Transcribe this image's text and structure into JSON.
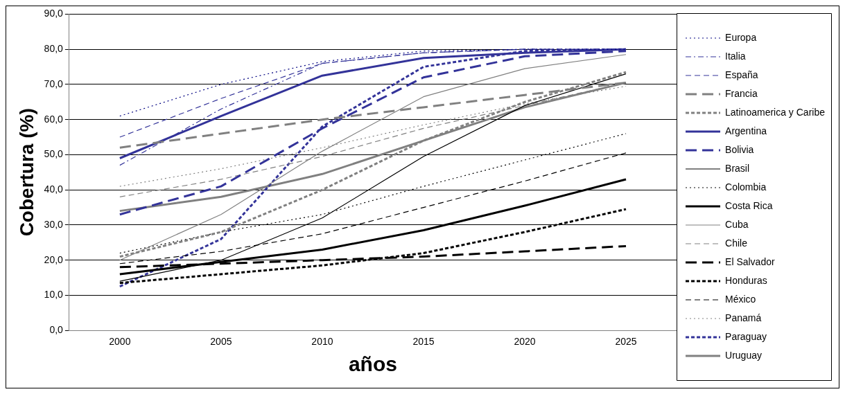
{
  "chart_data": {
    "type": "line",
    "xlabel": "años",
    "ylabel": "Cobertura (%)",
    "categories": [
      "2000",
      "2005",
      "2010",
      "2015",
      "2020",
      "2025"
    ],
    "ylim": [
      0,
      90
    ],
    "yticks": [
      {
        "value": 0,
        "label": "0,0"
      },
      {
        "value": 10,
        "label": "10,0"
      },
      {
        "value": 20,
        "label": "20,0"
      },
      {
        "value": 30,
        "label": "30,0"
      },
      {
        "value": 40,
        "label": "40,0"
      },
      {
        "value": 50,
        "label": "50,0"
      },
      {
        "value": 60,
        "label": "60,0"
      },
      {
        "value": 70,
        "label": "70,0"
      },
      {
        "value": 80,
        "label": "80,0"
      },
      {
        "value": 90,
        "label": "90,0"
      }
    ],
    "grid": "y",
    "legend": "right",
    "marker": "none",
    "series": [
      {
        "name": "Europa",
        "color": "#000080",
        "line_style": "dotted",
        "values": [
          61,
          70,
          76.5,
          79.5,
          80,
          80
        ]
      },
      {
        "name": "Italia",
        "color": "#333399",
        "line_style": "dashdot",
        "values": [
          47,
          63,
          76,
          79,
          80,
          80
        ]
      },
      {
        "name": "España",
        "color": "#333399",
        "line_style": "dashed",
        "values": [
          55,
          66,
          76,
          79,
          80,
          80
        ]
      },
      {
        "name": "Francia",
        "color": "#808080",
        "line_style": "dashed",
        "values": [
          52,
          56,
          60,
          63.5,
          67,
          70.5
        ]
      },
      {
        "name": "Latinoamerica y Caribe",
        "color": "#808080",
        "line_style": "dotted",
        "values": [
          21,
          28,
          40,
          54,
          65,
          73.5
        ]
      },
      {
        "name": "Argentina",
        "color": "#333399",
        "line_style": "solid",
        "values": [
          49,
          61,
          72.5,
          77.5,
          79,
          80
        ]
      },
      {
        "name": "Bolivia",
        "color": "#333399",
        "line_style": "dashed",
        "values": [
          33,
          41,
          57.5,
          72,
          78,
          79.5
        ]
      },
      {
        "name": "Brasil",
        "color": "#000000",
        "line_style": "solid",
        "values": [
          14,
          20,
          32,
          49.5,
          64,
          73
        ]
      },
      {
        "name": "Colombia",
        "color": "#000000",
        "line_style": "dotted",
        "values": [
          22,
          28,
          33,
          41,
          48.5,
          56
        ]
      },
      {
        "name": "Costa Rica",
        "color": "#000000",
        "line_style": "solid",
        "values": [
          16,
          19.5,
          23,
          28.5,
          35.5,
          43
        ]
      },
      {
        "name": "Cuba",
        "color": "#808080",
        "line_style": "solid",
        "values": [
          20,
          33,
          51,
          66.5,
          74.5,
          78.5
        ]
      },
      {
        "name": "Chile",
        "color": "#808080",
        "line_style": "dashed",
        "values": [
          38,
          43,
          49.5,
          57.5,
          64,
          70.5
        ]
      },
      {
        "name": "El Salvador",
        "color": "#000000",
        "line_style": "dashed",
        "values": [
          18,
          19,
          20,
          21,
          22.5,
          24
        ]
      },
      {
        "name": "Honduras",
        "color": "#000000",
        "line_style": "dotted",
        "values": [
          13.5,
          16,
          18.5,
          22,
          28,
          34.5
        ]
      },
      {
        "name": "México",
        "color": "#000000",
        "line_style": "dashed",
        "values": [
          19,
          22.5,
          27.5,
          35,
          42.5,
          50.5
        ]
      },
      {
        "name": "Panamá",
        "color": "#808080",
        "line_style": "dotted",
        "values": [
          41,
          46,
          52,
          58.5,
          64.5,
          69.5
        ]
      },
      {
        "name": "Paraguay",
        "color": "#333399",
        "line_style": "dotted",
        "values": [
          12.5,
          26,
          58,
          75,
          79.5,
          80
        ]
      },
      {
        "name": "Uruguay",
        "color": "#808080",
        "line_style": "solid",
        "values": [
          34,
          38,
          44.5,
          54,
          63.5,
          70.5
        ]
      }
    ]
  }
}
